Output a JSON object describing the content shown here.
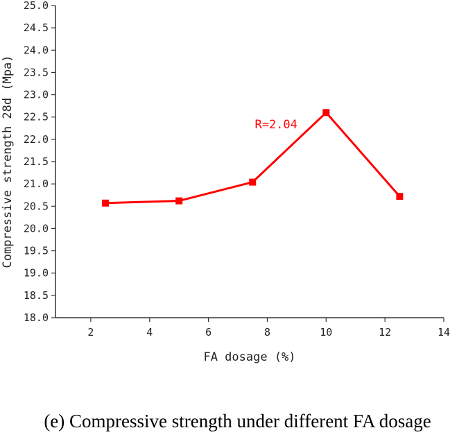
{
  "caption": "(e) Compressive strength under different FA dosage",
  "chart_data": {
    "type": "line",
    "title": "",
    "xlabel": "FA dosage (%)",
    "ylabel": "Compressive strength 28d (Mpa)",
    "xlim": [
      0.8,
      14
    ],
    "ylim": [
      18.0,
      25.0
    ],
    "xticks": [
      2,
      4,
      6,
      8,
      10,
      12,
      14
    ],
    "xtick_labels": [
      "2",
      "4",
      "6",
      "8",
      "10",
      "12",
      "14"
    ],
    "yticks": [
      18.0,
      18.5,
      19.0,
      19.5,
      20.0,
      20.5,
      21.0,
      21.5,
      22.0,
      22.5,
      23.0,
      23.5,
      24.0,
      24.5,
      25.0
    ],
    "ytick_labels": [
      "18.0",
      "18.5",
      "19.0",
      "19.5",
      "20.0",
      "20.5",
      "21.0",
      "21.5",
      "22.0",
      "22.5",
      "23.0",
      "23.5",
      "24.0",
      "24.5",
      "25.0"
    ],
    "grid": false,
    "series": [
      {
        "color": "#ff0000",
        "marker": "square",
        "x": [
          2.5,
          5,
          7.5,
          10,
          12.5
        ],
        "y": [
          20.57,
          20.62,
          21.04,
          22.6,
          20.72
        ]
      }
    ],
    "annotations": [
      {
        "text": "R=2.04",
        "x": 8.3,
        "y": 22.25,
        "color": "#ff0000"
      }
    ]
  }
}
